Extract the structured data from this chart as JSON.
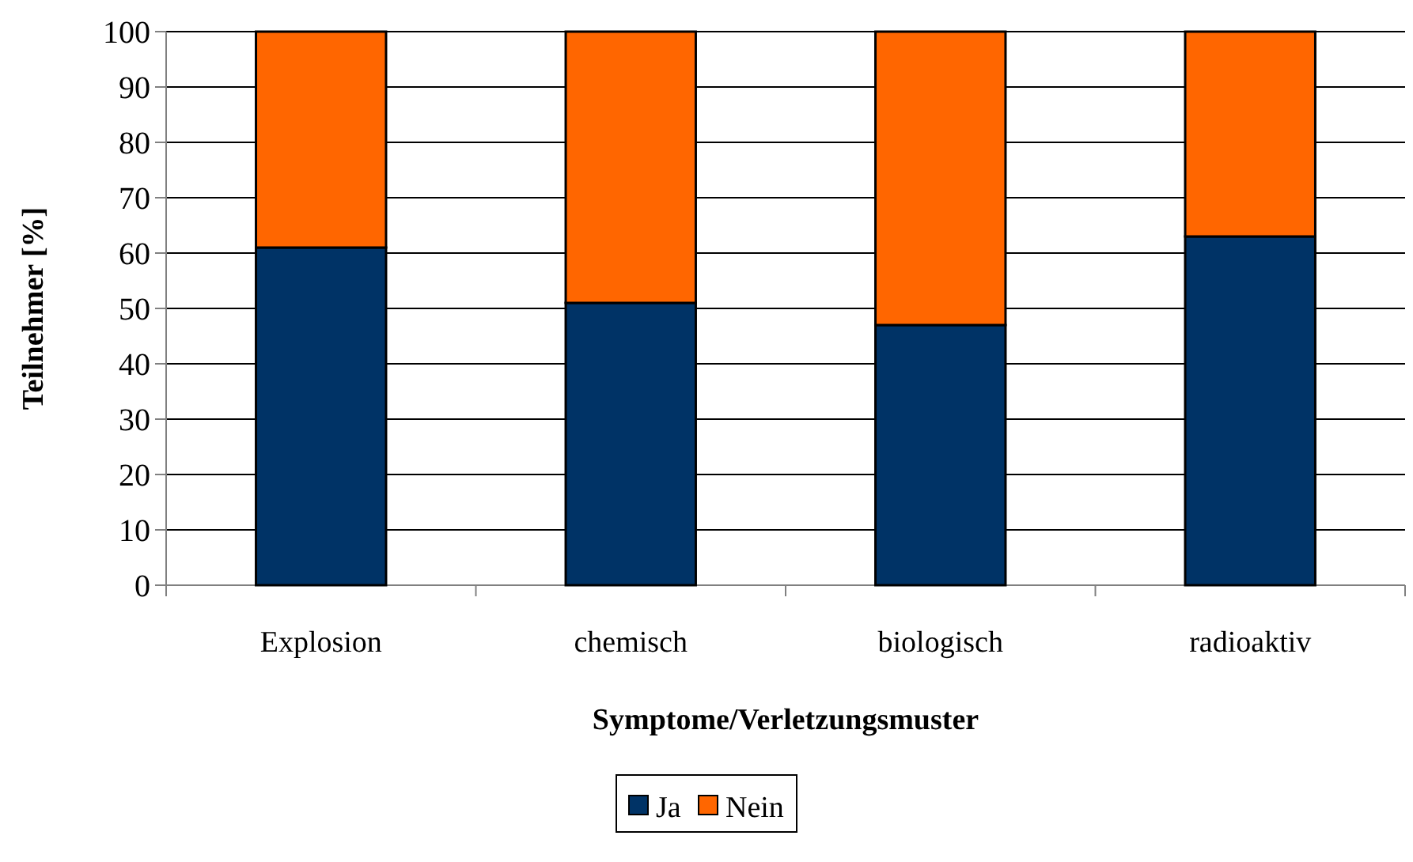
{
  "chart_data": {
    "type": "bar",
    "stacked": true,
    "xlabel": "Symptome/Verletzungsmuster",
    "ylabel": "Teilnehmer [%]",
    "categories": [
      "Explosion",
      "chemisch",
      "biologisch",
      "radioaktiv"
    ],
    "series": [
      {
        "name": "Ja",
        "color": "#003366",
        "values": [
          61,
          51,
          47,
          63
        ]
      },
      {
        "name": "Nein",
        "color": "#ff6600",
        "values": [
          39,
          49,
          53,
          37
        ]
      }
    ],
    "ylim": [
      0,
      100
    ],
    "yticks": [
      0,
      10,
      20,
      30,
      40,
      50,
      60,
      70,
      80,
      90,
      100
    ],
    "grid": "y",
    "legend": "bottom"
  }
}
